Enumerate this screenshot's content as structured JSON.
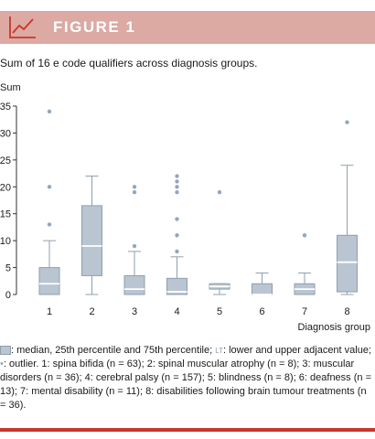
{
  "figure": {
    "label": "FIGURE 1",
    "caption": "Sum of 16 e code qualifiers across diagnosis groups."
  },
  "footnote": {
    "part1": ": median, 25th percentile and 75th percentile;",
    "sym_whisker": "LT",
    "part2": ": lower and upper adjacent value;",
    "part3": ": outlier. 1: spina bifida (n = 63); 2: spinal muscular atrophy (n = 8); 3: muscular disorders (n = 36); 4: cerebral palsy (n = 157); 5: blindness (n = 8); 6: deafness (n = 13); 7: mental disability (n = 11); 8: disabilities following brain tumour treatments (n = 36)."
  },
  "colors": {
    "box_fill": "#b9c5d1",
    "box_stroke": "#8f9fae",
    "median_line": "#ffffff",
    "whisker": "#8f9fae",
    "outlier": "#93a7bd",
    "header_bg": "#dca9a3",
    "bottom_rule": "#c7372e"
  },
  "chart_data": {
    "type": "box",
    "title": "",
    "xlabel": "Diagnosis group",
    "ylabel": "Sum",
    "ylim": [
      0,
      35
    ],
    "yticks": [
      0,
      5,
      10,
      15,
      20,
      25,
      30,
      35
    ],
    "grid": false,
    "categories": [
      "1",
      "2",
      "3",
      "4",
      "5",
      "6",
      "7",
      "8"
    ],
    "boxes": [
      {
        "category": "1",
        "whisker_low": 0,
        "q1": 0,
        "median": 2,
        "q3": 5,
        "whisker_high": 10,
        "outliers": [
          13,
          20,
          34
        ]
      },
      {
        "category": "2",
        "whisker_low": 0,
        "q1": 3.5,
        "median": 9,
        "q3": 16.5,
        "whisker_high": 22,
        "outliers": []
      },
      {
        "category": "3",
        "whisker_low": 0,
        "q1": 0,
        "median": 1,
        "q3": 3.5,
        "whisker_high": 8,
        "outliers": [
          9,
          19,
          20
        ]
      },
      {
        "category": "4",
        "whisker_low": 0,
        "q1": 0,
        "median": 0.5,
        "q3": 3,
        "whisker_high": 7,
        "outliers": [
          8,
          11,
          14,
          19,
          20,
          21,
          22
        ]
      },
      {
        "category": "5",
        "whisker_low": 0,
        "q1": 1,
        "median": 1.5,
        "q3": 2,
        "whisker_high": 2,
        "outliers": [
          19
        ]
      },
      {
        "category": "6",
        "whisker_low": 0,
        "q1": 0,
        "median": 0,
        "q3": 2,
        "whisker_high": 4,
        "outliers": []
      },
      {
        "category": "7",
        "whisker_low": 0,
        "q1": 0,
        "median": 1,
        "q3": 2,
        "whisker_high": 4,
        "outliers": [
          11
        ]
      },
      {
        "category": "8",
        "whisker_low": 0,
        "q1": 0.5,
        "median": 6,
        "q3": 11,
        "whisker_high": 24,
        "outliers": [
          32
        ]
      }
    ]
  }
}
